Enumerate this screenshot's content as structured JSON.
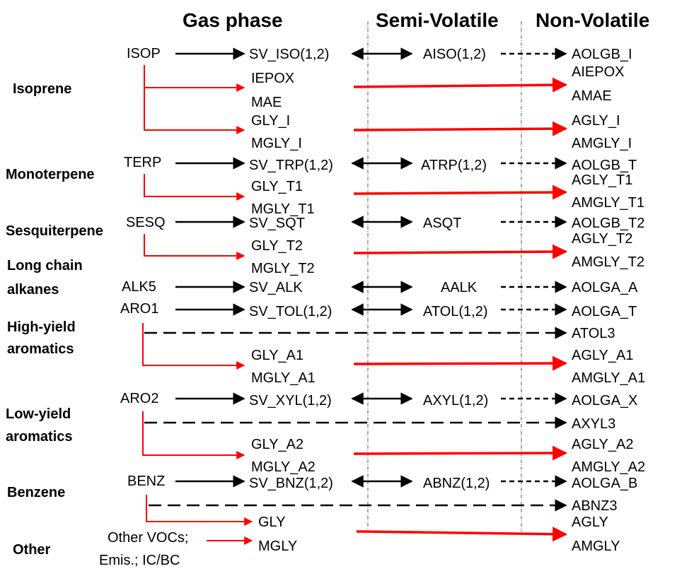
{
  "headers": {
    "gas_phase": "Gas phase",
    "semi_volatile": "Semi-Volatile",
    "non_volatile": "Non-Volatile"
  },
  "categories": {
    "isoprene": "Isoprene",
    "monoterpene": "Monoterpene",
    "sesquiterpene": "Sesquiterpene",
    "long_chain_1": "Long chain",
    "long_chain_2": "alkanes",
    "high_yield_1": "High-yield",
    "high_yield_2": "aromatics",
    "low_yield_1": "Low-yield",
    "low_yield_2": "aromatics",
    "benzene": "Benzene",
    "other": "Other"
  },
  "precursors": {
    "isop": "ISOP",
    "terp": "TERP",
    "sesq": "SESQ",
    "alk5": "ALK5",
    "aro1": "ARO1",
    "aro2": "ARO2",
    "benz": "BENZ",
    "other_1": "Other VOCs;",
    "other_2": "Emis.; IC/BC"
  },
  "gas_species": {
    "sv_iso": "SV_ISO(1,2)",
    "iepox": "IEPOX",
    "mae": "MAE",
    "gly_i": "GLY_I",
    "mgly_i": "MGLY_I",
    "sv_trp": "SV_TRP(1,2)",
    "gly_t1": "GLY_T1",
    "mgly_t1": "MGLY_T1",
    "sv_sqt": "SV_SQT",
    "gly_t2": "GLY_T2",
    "mgly_t2": "MGLY_T2",
    "sv_alk": "SV_ALK",
    "sv_tol": "SV_TOL(1,2)",
    "gly_a1": "GLY_A1",
    "mgly_a1": "MGLY_A1",
    "sv_xyl": "SV_XYL(1,2)",
    "gly_a2": "GLY_A2",
    "mgly_a2": "MGLY_A2",
    "sv_bnz": "SV_BNZ(1,2)",
    "gly": "GLY",
    "mgly": "MGLY"
  },
  "semi_species": {
    "aiso": "AISO(1,2)",
    "atrp": "ATRP(1,2)",
    "asqt": "ASQT",
    "aalk": "AALK",
    "atol": "ATOL(1,2)",
    "axyl": "AXYL(1,2)",
    "abnz": "ABNZ(1,2)"
  },
  "nonvol_species": {
    "aolgb_i": "AOLGB_I",
    "aiepox": "AIEPOX",
    "amae": "AMAE",
    "agly_i": "AGLY_I",
    "amgly_i": "AMGLY_I",
    "aolgb_t": "AOLGB_T",
    "agly_t1": "AGLY_T1",
    "amgly_t1": "AMGLY_T1",
    "aolgb_t2": "AOLGB_T2",
    "agly_t2": "AGLY_T2",
    "amgly_t2": "AMGLY_T2",
    "aolga_a": "AOLGA_A",
    "aolga_t": "AOLGA_T",
    "atol3": "ATOL3",
    "agly_a1": "AGLY_A1",
    "amgly_a1": "AMGLY_A1",
    "aolga_x": "AOLGA_X",
    "axyl3": "AXYL3",
    "agly_a2": "AGLY_A2",
    "amgly_a2": "AMGLY_A2",
    "aolga_b": "AOLGA_B",
    "abnz3": "ABNZ3",
    "agly": "AGLY",
    "amgly": "AMGLY"
  },
  "colors": {
    "black": "#000000",
    "red": "#ff0000",
    "divider": "#555555"
  }
}
